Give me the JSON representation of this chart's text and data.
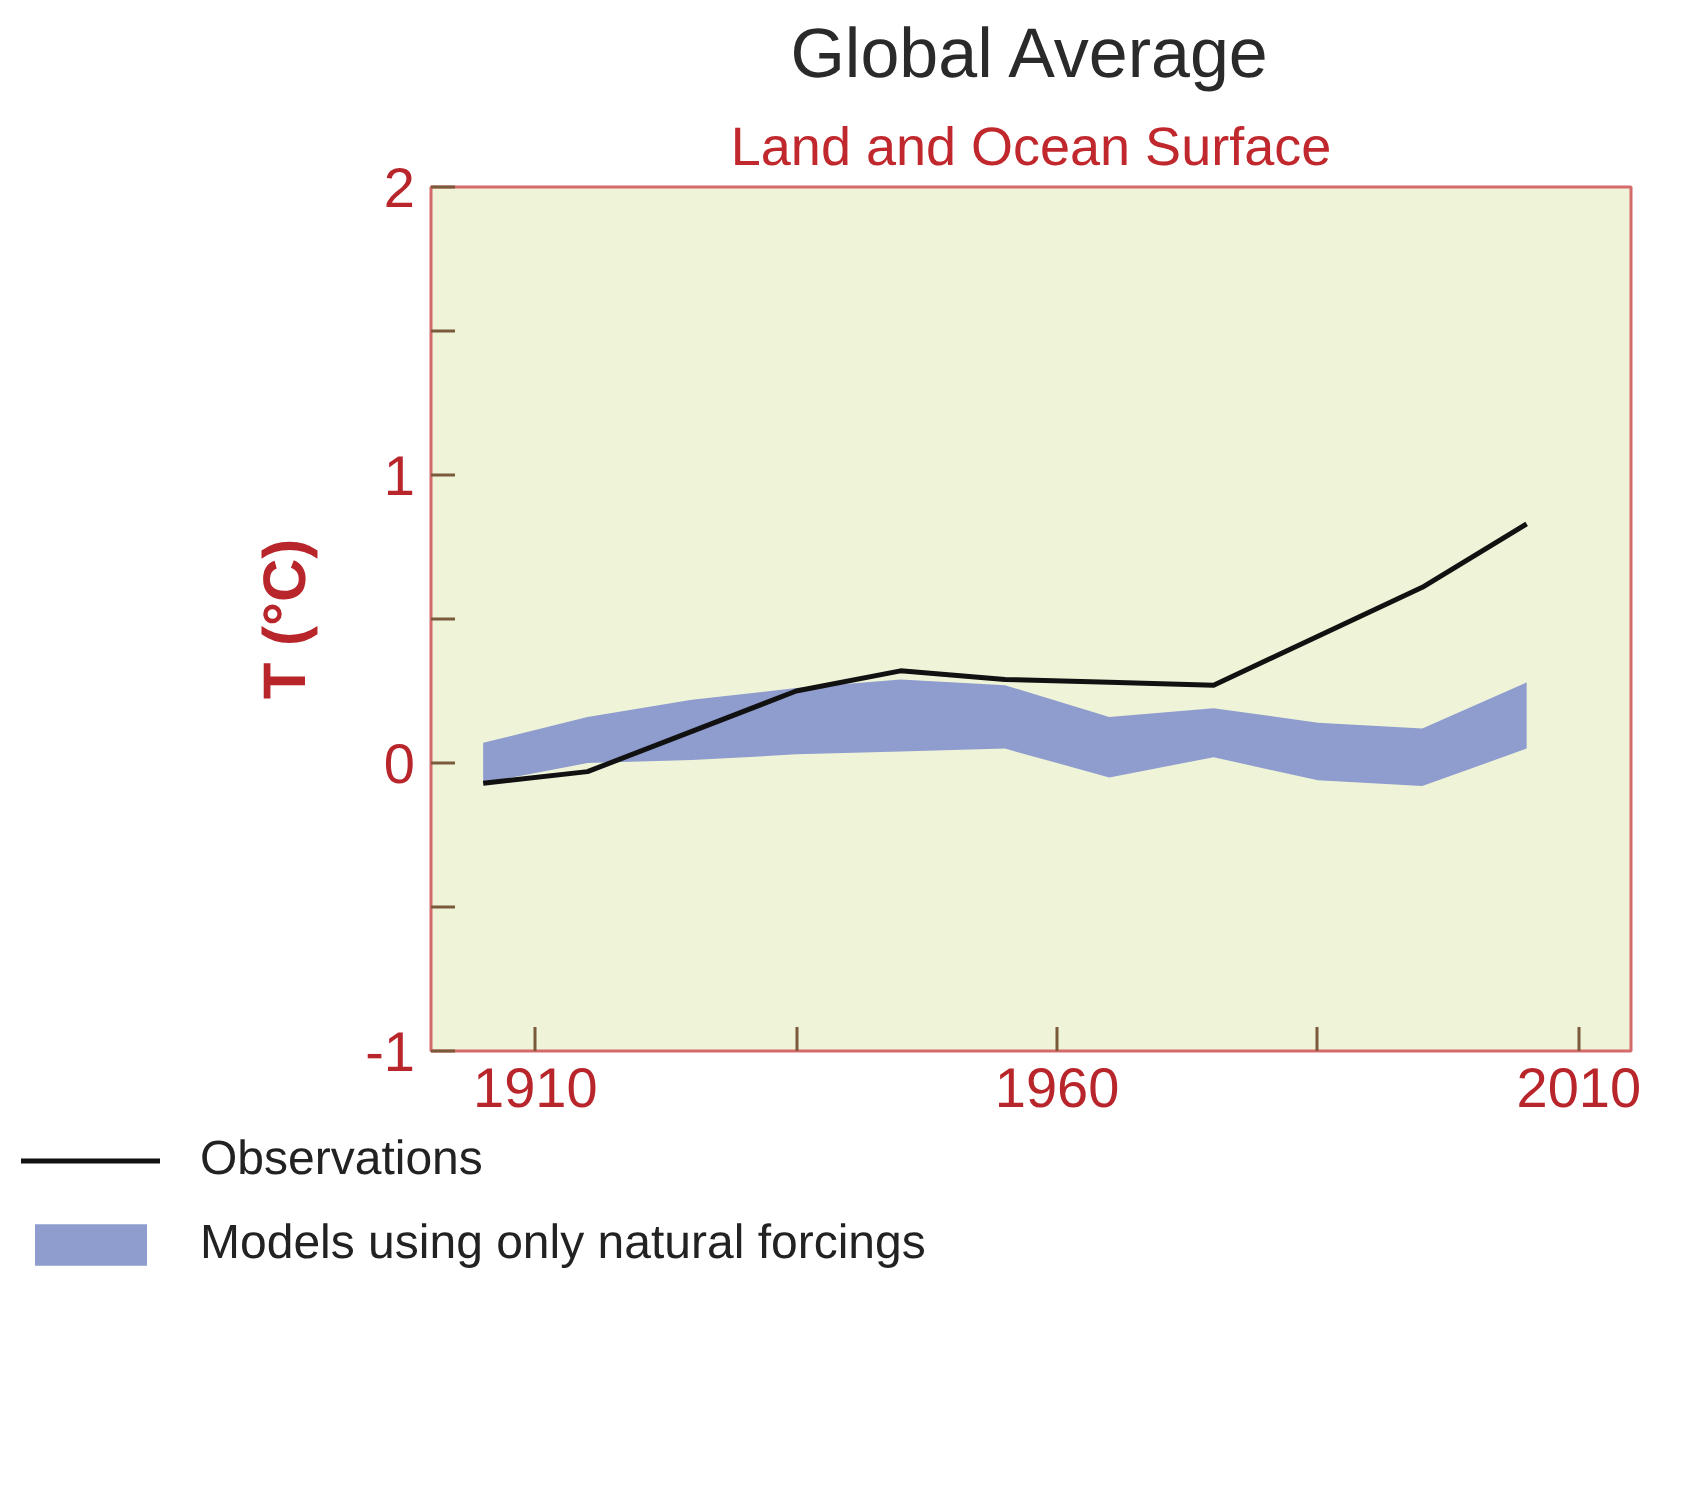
{
  "chart_data": {
    "type": "line",
    "title": "Global Average",
    "subtitle": "Land and Ocean Surface",
    "ylabel": "T (°C)",
    "x": [
      1905,
      1915,
      1925,
      1935,
      1945,
      1955,
      1965,
      1975,
      1985,
      1995,
      2005
    ],
    "series": [
      {
        "name": "Observations",
        "type": "line",
        "color": "#111111",
        "values": [
          -0.07,
          -0.03,
          0.11,
          0.25,
          0.32,
          0.29,
          0.28,
          0.27,
          0.44,
          0.61,
          0.83
        ]
      },
      {
        "name": "Models using only natural forcings",
        "type": "area",
        "color": "#8e9cce",
        "values": [
          null,
          null,
          null,
          null,
          null,
          null,
          null,
          null,
          null,
          null,
          null
        ],
        "lower": [
          -0.07,
          0.0,
          0.01,
          0.03,
          0.04,
          0.05,
          -0.05,
          0.02,
          -0.06,
          -0.08,
          0.05
        ],
        "upper": [
          0.07,
          0.16,
          0.22,
          0.26,
          0.29,
          0.27,
          0.16,
          0.19,
          0.14,
          0.12,
          0.28
        ]
      }
    ],
    "xlim": [
      1900,
      2015
    ],
    "xticks": [
      1910,
      {
        "value": 1935,
        "label": null
      },
      1960,
      {
        "value": 1985,
        "label": null
      },
      2010
    ],
    "ylim": [
      -1,
      2
    ],
    "yticks": [
      -1,
      {
        "value": -0.5,
        "label": null
      },
      0,
      {
        "value": 0.5,
        "label": null
      },
      1,
      {
        "value": 1.5,
        "label": null
      },
      2
    ],
    "grid": false,
    "legend": "bottom",
    "line_style": "solid",
    "marker": "none"
  }
}
